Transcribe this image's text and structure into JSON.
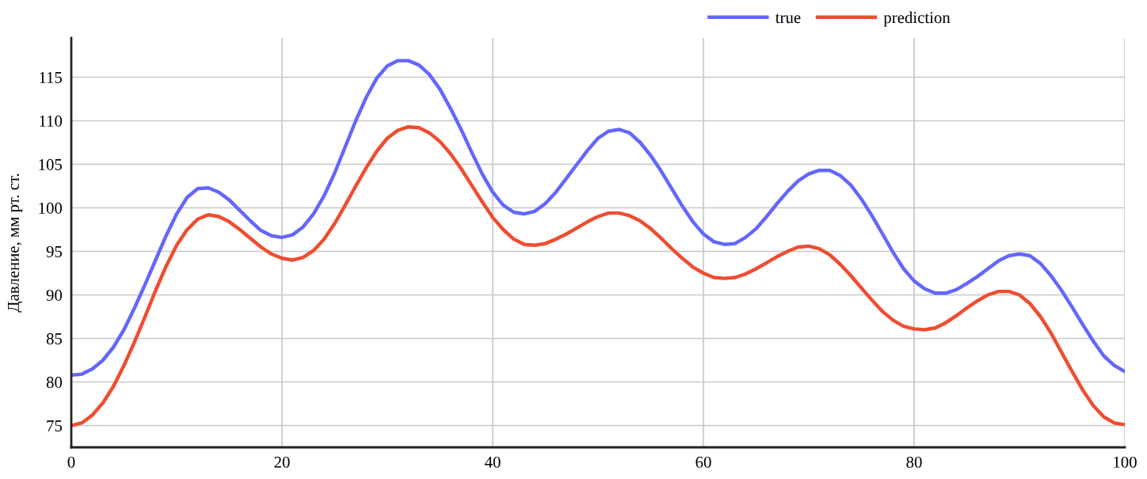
{
  "chart_data": {
    "type": "line",
    "ylabel": "Давление, мм рт. ст.",
    "x": [
      0,
      1,
      2,
      3,
      4,
      5,
      6,
      7,
      8,
      9,
      10,
      11,
      12,
      13,
      14,
      15,
      16,
      17,
      18,
      19,
      20,
      21,
      22,
      23,
      24,
      25,
      26,
      27,
      28,
      29,
      30,
      31,
      32,
      33,
      34,
      35,
      36,
      37,
      38,
      39,
      40,
      41,
      42,
      43,
      44,
      45,
      46,
      47,
      48,
      49,
      50,
      51,
      52,
      53,
      54,
      55,
      56,
      57,
      58,
      59,
      60,
      61,
      62,
      63,
      64,
      65,
      66,
      67,
      68,
      69,
      70,
      71,
      72,
      73,
      74,
      75,
      76,
      77,
      78,
      79,
      80,
      81,
      82,
      83,
      84,
      85,
      86,
      87,
      88,
      89,
      90,
      91,
      92,
      93,
      94,
      95,
      96,
      97,
      98,
      99,
      100
    ],
    "series": [
      {
        "name": "true",
        "color": "#6466ff",
        "values": [
          80.8,
          80.9,
          81.5,
          82.5,
          84.0,
          86.0,
          88.5,
          91.2,
          94.0,
          96.8,
          99.3,
          101.2,
          102.2,
          102.3,
          101.8,
          100.9,
          99.7,
          98.5,
          97.4,
          96.8,
          96.6,
          96.9,
          97.8,
          99.3,
          101.4,
          104.0,
          107.0,
          110.0,
          112.7,
          114.9,
          116.3,
          116.9,
          116.9,
          116.4,
          115.3,
          113.6,
          111.4,
          109.0,
          106.4,
          103.9,
          101.8,
          100.3,
          99.5,
          99.3,
          99.6,
          100.5,
          101.8,
          103.4,
          105.0,
          106.6,
          108.0,
          108.8,
          109.0,
          108.6,
          107.5,
          106.0,
          104.2,
          102.2,
          100.2,
          98.4,
          97.0,
          96.1,
          95.8,
          95.9,
          96.6,
          97.6,
          99.0,
          100.5,
          101.9,
          103.1,
          103.9,
          104.3,
          104.3,
          103.7,
          102.6,
          101.0,
          99.1,
          97.0,
          94.9,
          93.0,
          91.6,
          90.7,
          90.2,
          90.2,
          90.6,
          91.3,
          92.1,
          93.0,
          93.9,
          94.5,
          94.7,
          94.5,
          93.6,
          92.2,
          90.5,
          88.6,
          86.6,
          84.7,
          83.0,
          81.9,
          81.2
        ]
      },
      {
        "name": "prediction",
        "color": "#f04c30",
        "values": [
          75.0,
          75.3,
          76.2,
          77.6,
          79.5,
          81.9,
          84.6,
          87.5,
          90.5,
          93.3,
          95.7,
          97.5,
          98.7,
          99.2,
          99.0,
          98.4,
          97.5,
          96.5,
          95.5,
          94.7,
          94.2,
          94.0,
          94.3,
          95.1,
          96.4,
          98.2,
          100.3,
          102.5,
          104.6,
          106.5,
          108.0,
          108.9,
          109.3,
          109.2,
          108.6,
          107.6,
          106.2,
          104.5,
          102.6,
          100.7,
          98.9,
          97.5,
          96.4,
          95.8,
          95.7,
          95.9,
          96.4,
          97.0,
          97.7,
          98.4,
          99.0,
          99.4,
          99.4,
          99.1,
          98.5,
          97.6,
          96.5,
          95.3,
          94.2,
          93.2,
          92.5,
          92.0,
          91.9,
          92.0,
          92.4,
          93.0,
          93.7,
          94.4,
          95.0,
          95.5,
          95.6,
          95.3,
          94.6,
          93.5,
          92.2,
          90.8,
          89.4,
          88.1,
          87.1,
          86.4,
          86.1,
          86.0,
          86.2,
          86.8,
          87.6,
          88.5,
          89.3,
          90.0,
          90.4,
          90.4,
          90.0,
          89.0,
          87.5,
          85.6,
          83.4,
          81.2,
          79.1,
          77.3,
          76.0,
          75.3,
          75.1
        ]
      }
    ],
    "xlim": [
      0,
      100
    ],
    "xticks": [
      0,
      20,
      40,
      60,
      80,
      100
    ],
    "ylim": [
      72.5,
      119.5
    ],
    "yticks": [
      75,
      80,
      85,
      90,
      95,
      100,
      105,
      110,
      115
    ],
    "grid": true,
    "legend": "top",
    "marker": "none",
    "line_style": "solid"
  }
}
